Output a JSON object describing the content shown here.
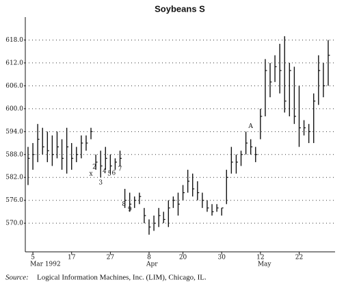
{
  "chart_data": {
    "type": "ohlc",
    "title": "Soybeans S",
    "source_label": "Source:",
    "source": "Logical Information Machines, Inc. (LIM), Chicago, IL.",
    "categories": [
      null,
      "5",
      null,
      null,
      null,
      null,
      null,
      null,
      null,
      "17",
      null,
      null,
      null,
      null,
      null,
      null,
      null,
      "27",
      null,
      null,
      null,
      null,
      null,
      null,
      null,
      "8",
      null,
      null,
      null,
      null,
      null,
      null,
      "20",
      null,
      null,
      null,
      null,
      null,
      null,
      null,
      "30",
      null,
      null,
      null,
      null,
      null,
      null,
      null,
      "12",
      null,
      null,
      null,
      null,
      null,
      null,
      null,
      "22",
      null,
      null,
      null,
      null,
      null,
      null
    ],
    "month_labels": [
      null,
      "Mar 1992",
      null,
      null,
      null,
      null,
      null,
      null,
      null,
      null,
      null,
      null,
      null,
      null,
      null,
      null,
      null,
      null,
      null,
      null,
      null,
      null,
      null,
      null,
      null,
      "Apr",
      null,
      null,
      null,
      null,
      null,
      null,
      null,
      null,
      null,
      null,
      null,
      null,
      null,
      null,
      null,
      null,
      null,
      null,
      null,
      null,
      null,
      null,
      "May",
      null,
      null,
      null,
      null,
      null,
      null,
      null,
      null,
      null,
      null,
      null,
      null,
      null,
      null
    ],
    "high": [
      590,
      591,
      596,
      595,
      594,
      593,
      594,
      592,
      595,
      591,
      590,
      593,
      593,
      595,
      588,
      589,
      590,
      588,
      587,
      589,
      579,
      578,
      577,
      578,
      574,
      571,
      572,
      574,
      573,
      576,
      577,
      578,
      580,
      584,
      583,
      581,
      578,
      576,
      575,
      575,
      574,
      584,
      590,
      588,
      589,
      594,
      592,
      590,
      600,
      613,
      612,
      614,
      617,
      619,
      612,
      611,
      606,
      597,
      596,
      604,
      614,
      612,
      618
    ],
    "low": [
      580,
      584,
      586,
      588,
      586,
      585,
      587,
      584,
      583,
      584,
      586,
      587,
      589,
      592,
      584,
      582,
      584,
      583,
      584,
      585,
      574,
      573,
      574,
      575,
      570,
      567,
      568,
      569,
      570,
      569,
      574,
      572,
      576,
      578,
      577,
      576,
      574,
      573,
      572,
      573,
      572,
      575,
      583,
      583,
      585,
      588,
      588,
      586,
      592,
      598,
      603,
      607,
      604,
      599,
      598,
      596,
      590,
      593,
      591,
      591,
      601,
      603,
      606
    ],
    "close": [
      587,
      588,
      592,
      590,
      589,
      588,
      590,
      587,
      590,
      587,
      588,
      591,
      591,
      594,
      586,
      585,
      587,
      585,
      586,
      587,
      576,
      575,
      576,
      577,
      572,
      569,
      570,
      572,
      571,
      574,
      576,
      575,
      578,
      581,
      579,
      578,
      576,
      574,
      573,
      574,
      574,
      582,
      586,
      586,
      588,
      591,
      590,
      588,
      598,
      610,
      607,
      611,
      610,
      602,
      610,
      598,
      595,
      595,
      594,
      602,
      610,
      606,
      614
    ],
    "color": "#111111",
    "ylim": [
      562.5,
      624
    ],
    "yticks": [
      {
        "value": 570,
        "label": "570.0"
      },
      {
        "value": 576,
        "label": "576.0"
      },
      {
        "value": 582,
        "label": "582.0"
      },
      {
        "value": 588,
        "label": "588.0"
      },
      {
        "value": 594,
        "label": "594.0"
      },
      {
        "value": 600,
        "label": "600.0"
      },
      {
        "value": 606,
        "label": "606.0"
      },
      {
        "value": 612,
        "label": "612.0"
      },
      {
        "value": 618,
        "label": "618.0"
      }
    ],
    "grid": true,
    "annotations": [
      {
        "text": "x",
        "x": 13,
        "y": 582.9
      },
      {
        "text": "2",
        "x": 13.7,
        "y": 584.7
      },
      {
        "text": "3",
        "x": 15,
        "y": 580.6
      },
      {
        "text": "4",
        "x": 15.8,
        "y": 583.6
      },
      {
        "text": "5",
        "x": 16.8,
        "y": 582.9
      },
      {
        "text": "6",
        "x": 17.7,
        "y": 583.1
      },
      {
        "text": "7",
        "x": 19,
        "y": 584.2
      },
      {
        "text": "8",
        "x": 19.8,
        "y": 575
      },
      {
        "text": "9",
        "x": 21,
        "y": 573.6
      },
      {
        "text": "A",
        "x": 46,
        "y": 595.4
      }
    ]
  }
}
